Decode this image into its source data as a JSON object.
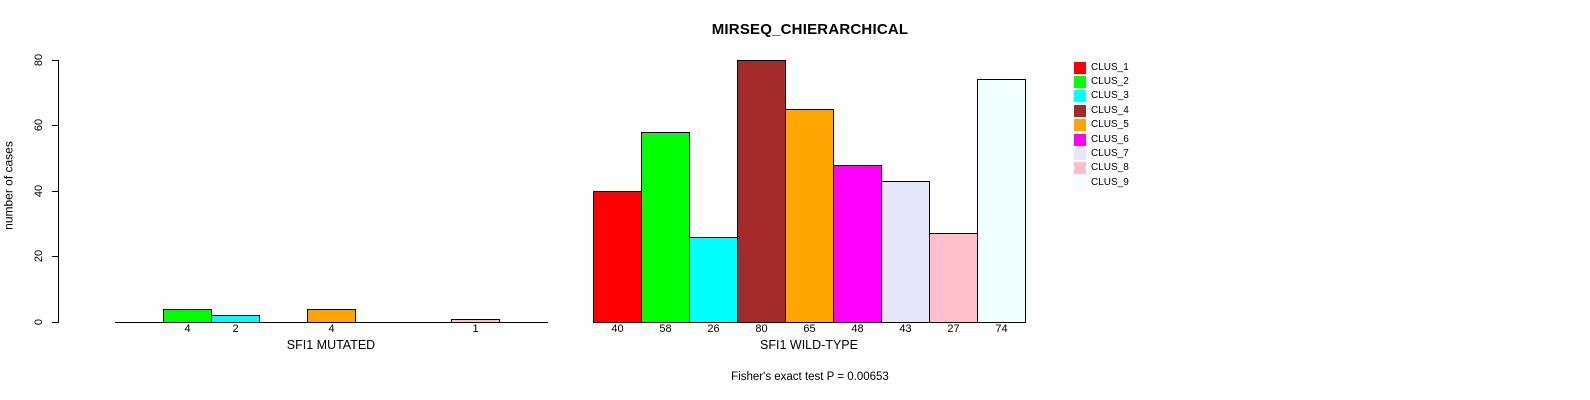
{
  "chart_data": {
    "type": "bar",
    "title": "MIRSEQ_CHIERARCHICAL",
    "ylabel": "number of cases",
    "ylim": [
      0,
      80
    ],
    "yticks": [
      0,
      20,
      40,
      60,
      80
    ],
    "grid": false,
    "legend_position": "right",
    "bar_value_labels": true,
    "categories": [
      "CLUS_1",
      "CLUS_2",
      "CLUS_3",
      "CLUS_4",
      "CLUS_5",
      "CLUS_6",
      "CLUS_7",
      "CLUS_8",
      "CLUS_9"
    ],
    "colors": [
      "#FF0000",
      "#00FF00",
      "#00FFFF",
      "#A52A2A",
      "#FFA500",
      "#FF00FF",
      "#E6E6FA",
      "#FFC0CB",
      "#F0FFFF"
    ],
    "series": [
      {
        "name": "SFI1 MUTATED",
        "values": [
          0,
          4,
          2,
          0,
          4,
          0,
          0,
          1,
          0
        ]
      },
      {
        "name": "SFI1 WILD-TYPE",
        "values": [
          40,
          58,
          26,
          80,
          65,
          48,
          43,
          27,
          74
        ]
      }
    ],
    "annotation": "Fisher's exact test P = 0.00653"
  },
  "legend": {
    "items": [
      {
        "label": "CLUS_1",
        "color": "#FF0000"
      },
      {
        "label": "CLUS_2",
        "color": "#00FF00"
      },
      {
        "label": "CLUS_3",
        "color": "#00FFFF"
      },
      {
        "label": "CLUS_4",
        "color": "#A52A2A"
      },
      {
        "label": "CLUS_5",
        "color": "#FFA500"
      },
      {
        "label": "CLUS_6",
        "color": "#FF00FF"
      },
      {
        "label": "CLUS_7",
        "color": "#E6E6FA"
      },
      {
        "label": "CLUS_8",
        "color": "#FFC0CB"
      },
      {
        "label": "CLUS_9",
        "color": "#F0FFFF"
      }
    ]
  }
}
